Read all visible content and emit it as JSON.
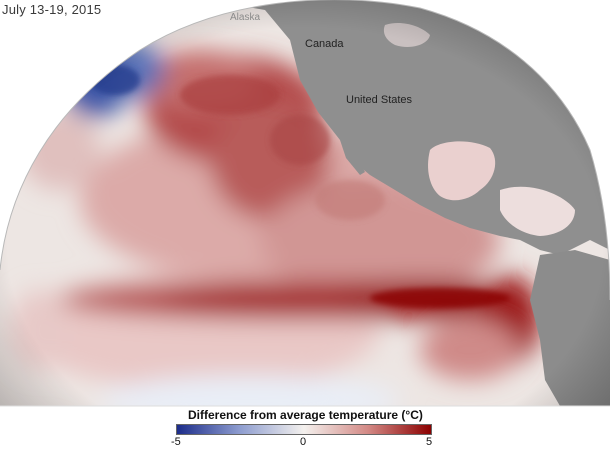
{
  "title": "July 13-19, 2015",
  "labels": {
    "alaska": "Alaska",
    "canada": "Canada",
    "united_states": "United States"
  },
  "legend": {
    "title": "Difference from average temperature (°C)",
    "min": "-5",
    "mid": "0",
    "max": "5",
    "colors": {
      "cold": "#1c2c8a",
      "neutral": "#f4f1ee",
      "warm": "#8b0000"
    }
  },
  "colors": {
    "land": "#8e8e8e",
    "space": "#ffffff"
  }
}
